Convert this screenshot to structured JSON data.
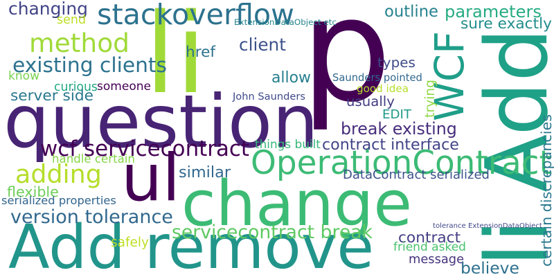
{
  "words": [
    {
      "text": "p",
      "color": "#440154"
    },
    {
      "text": "change",
      "color": "#3cbb75"
    },
    {
      "text": "question",
      "color": "#482475"
    },
    {
      "text": "Add remove",
      "color": "#22958b"
    },
    {
      "text": "li",
      "color": "#a0da39"
    },
    {
      "text": "li Add",
      "color": "#1fa187"
    },
    {
      "text": "ul",
      "color": "#440154"
    },
    {
      "text": "stackoverflow",
      "color": "#2c728e"
    },
    {
      "text": "method",
      "color": "#a0da39"
    },
    {
      "text": "OperationContract",
      "color": "#3cbb75"
    },
    {
      "text": "WCF",
      "color": "#1f9e89"
    },
    {
      "text": "adding",
      "color": "#b5de2b"
    },
    {
      "text": "existing clients",
      "color": "#2c728e"
    },
    {
      "text": "wcf servicecontract",
      "color": "#440154"
    },
    {
      "text": "break existing",
      "color": "#472d7b"
    },
    {
      "text": "servicecontract break",
      "color": "#5ec962"
    },
    {
      "text": "version tolerance",
      "color": "#31688e"
    },
    {
      "text": "changing",
      "color": "#414487"
    },
    {
      "text": "send",
      "color": "#bddf26"
    },
    {
      "text": "outline",
      "color": "#26828e"
    },
    {
      "text": "parameters",
      "color": "#25ab82"
    },
    {
      "text": "sure exactly",
      "color": "#228c8d"
    },
    {
      "text": "ExtensionDataObject etc",
      "color": "#25858e"
    },
    {
      "text": "client",
      "color": "#3b528b"
    },
    {
      "text": "href",
      "color": "#2c728e"
    },
    {
      "text": "types",
      "color": "#3e4a89"
    },
    {
      "text": "know",
      "color": "#7ad151"
    },
    {
      "text": "allow",
      "color": "#277f8e"
    },
    {
      "text": "curious",
      "color": "#22a884"
    },
    {
      "text": "someone",
      "color": "#440154"
    },
    {
      "text": "Saunders pointed",
      "color": "#31688e"
    },
    {
      "text": "good idea",
      "color": "#b5de2b"
    },
    {
      "text": "server side",
      "color": "#2a788e"
    },
    {
      "text": "John Saunders",
      "color": "#3e4989"
    },
    {
      "text": "trying",
      "color": "#8fd744"
    },
    {
      "text": "usually",
      "color": "#433e85"
    },
    {
      "text": "EDIT",
      "color": "#1f9a8a"
    },
    {
      "text": "certain discrepancies",
      "color": "#2a788e"
    },
    {
      "text": "things built",
      "color": "#35b779"
    },
    {
      "text": "contract interface",
      "color": "#414487"
    },
    {
      "text": "handle certain",
      "color": "#86d549"
    },
    {
      "text": "similar",
      "color": "#31688e"
    },
    {
      "text": "DataContract serialized",
      "color": "#3b528b"
    },
    {
      "text": "flexible",
      "color": "#6ece58"
    },
    {
      "text": "serialized properties",
      "color": "#32658e"
    },
    {
      "text": "contract",
      "color": "#433e85"
    },
    {
      "text": "safely",
      "color": "#bddf26"
    },
    {
      "text": "tolerance ExtensionDataObject",
      "color": "#3f4788"
    },
    {
      "text": "friend asked",
      "color": "#4ac16d"
    },
    {
      "text": "message",
      "color": "#46337e"
    },
    {
      "text": "believe",
      "color": "#2d708e"
    }
  ]
}
